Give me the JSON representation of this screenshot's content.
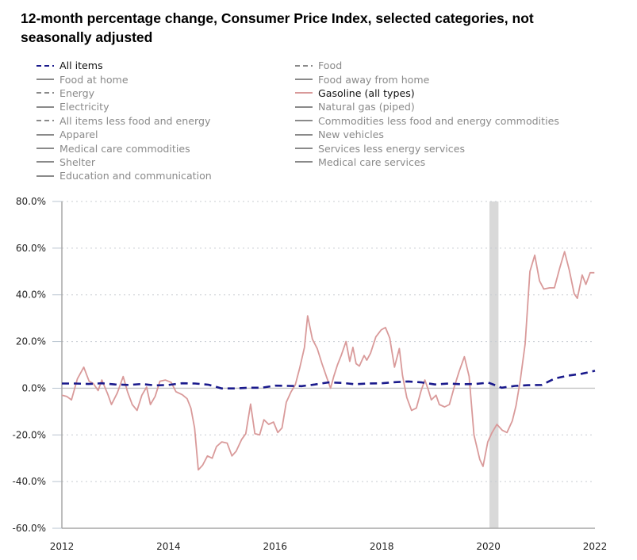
{
  "title": "12-month percentage change, Consumer Price Index, selected categories, not seasonally adjusted",
  "legend": {
    "column1": [
      {
        "label": "All items",
        "style": "dashed",
        "color": "#1a1a8c",
        "active": true
      },
      {
        "label": "Food at home",
        "style": "solid",
        "color": "#8a8a8a",
        "active": false
      },
      {
        "label": "Energy",
        "style": "dashed",
        "color": "#8a8a8a",
        "active": false
      },
      {
        "label": "Electricity",
        "style": "solid",
        "color": "#8a8a8a",
        "active": false
      },
      {
        "label": "All items less food and energy",
        "style": "dashed",
        "color": "#8a8a8a",
        "active": false
      },
      {
        "label": "Apparel",
        "style": "solid",
        "color": "#8a8a8a",
        "active": false
      },
      {
        "label": "Medical care commodities",
        "style": "solid",
        "color": "#8a8a8a",
        "active": false
      },
      {
        "label": "Shelter",
        "style": "solid",
        "color": "#8a8a8a",
        "active": false
      },
      {
        "label": "Education and communication",
        "style": "solid",
        "color": "#8a8a8a",
        "active": false
      }
    ],
    "column2": [
      {
        "label": "Food",
        "style": "dashed",
        "color": "#8a8a8a",
        "active": false
      },
      {
        "label": "Food away from home",
        "style": "solid",
        "color": "#8a8a8a",
        "active": false
      },
      {
        "label": "Gasoline (all types)",
        "style": "solid",
        "color": "#d99a9a",
        "active": true
      },
      {
        "label": "Natural gas (piped)",
        "style": "solid",
        "color": "#8a8a8a",
        "active": false
      },
      {
        "label": "Commodities less food and energy commodities",
        "style": "solid",
        "color": "#8a8a8a",
        "active": false
      },
      {
        "label": "New vehicles",
        "style": "solid",
        "color": "#8a8a8a",
        "active": false
      },
      {
        "label": "Services less energy services",
        "style": "solid",
        "color": "#8a8a8a",
        "active": false
      },
      {
        "label": "Medical care services",
        "style": "solid",
        "color": "#8a8a8a",
        "active": false
      }
    ]
  },
  "chart_data": {
    "type": "line",
    "title": "12-month percentage change, Consumer Price Index, selected categories, not seasonally adjusted",
    "xlabel": "",
    "ylabel": "",
    "xlim": [
      2012,
      2022
    ],
    "ylim": [
      -60,
      80
    ],
    "x_ticks": [
      2012,
      2014,
      2016,
      2018,
      2020,
      2022
    ],
    "x_tick_labels": [
      "2012",
      "2014",
      "2016",
      "2018",
      "2020",
      "2022"
    ],
    "y_ticks": [
      80,
      60,
      40,
      20,
      0,
      -20,
      -40,
      -60
    ],
    "y_tick_labels": [
      "80.0%",
      "60.0%",
      "40.0%",
      "20.0%",
      "0.0%",
      "-20.0%",
      "-40.0%",
      "-60.0%"
    ],
    "grid": "horizontal dotted",
    "legend_position": "top",
    "shaded_periods": [
      {
        "label": "Recession",
        "start": 2020.08,
        "end": 2020.25,
        "color": "#d9d9d9"
      }
    ],
    "series": [
      {
        "name": "All items",
        "style": "dashed",
        "color": "#1a1a8c",
        "x": [
          2012.0,
          2012.25,
          2012.5,
          2012.75,
          2013.0,
          2013.25,
          2013.5,
          2013.75,
          2014.0,
          2014.25,
          2014.5,
          2014.75,
          2015.0,
          2015.25,
          2015.5,
          2015.75,
          2016.0,
          2016.25,
          2016.5,
          2016.75,
          2017.0,
          2017.25,
          2017.5,
          2017.75,
          2018.0,
          2018.25,
          2018.5,
          2018.75,
          2019.0,
          2019.25,
          2019.5,
          2019.75,
          2020.0,
          2020.25,
          2020.5,
          2020.75,
          2021.0,
          2021.25,
          2021.5,
          2021.75,
          2021.92,
          2022.0
        ],
        "values": [
          2.0,
          2.0,
          1.8,
          2.1,
          1.6,
          1.4,
          1.8,
          1.2,
          1.4,
          2.1,
          2.0,
          1.5,
          -0.1,
          -0.1,
          0.2,
          0.2,
          1.1,
          1.0,
          0.9,
          1.6,
          2.5,
          2.3,
          1.7,
          2.0,
          2.1,
          2.6,
          2.9,
          2.5,
          1.6,
          2.0,
          1.7,
          1.8,
          2.4,
          0.2,
          1.0,
          1.3,
          1.4,
          4.2,
          5.4,
          6.2,
          7.0,
          7.5
        ]
      },
      {
        "name": "Gasoline (all types)",
        "style": "solid",
        "color": "#d99a9a",
        "x": [
          2012.0,
          2012.09,
          2012.18,
          2012.29,
          2012.41,
          2012.51,
          2012.59,
          2012.68,
          2012.75,
          2012.86,
          2012.93,
          2013.04,
          2013.15,
          2013.23,
          2013.32,
          2013.41,
          2013.5,
          2013.59,
          2013.66,
          2013.75,
          2013.84,
          2013.94,
          2014.05,
          2014.14,
          2014.26,
          2014.35,
          2014.42,
          2014.49,
          2014.56,
          2014.64,
          2014.73,
          2014.82,
          2014.9,
          2015.0,
          2015.1,
          2015.19,
          2015.27,
          2015.37,
          2015.45,
          2015.54,
          2015.62,
          2015.71,
          2015.79,
          2015.88,
          2015.97,
          2016.05,
          2016.13,
          2016.21,
          2016.3,
          2016.38,
          2016.46,
          2016.55,
          2016.61,
          2016.7,
          2016.79,
          2016.88,
          2016.97,
          2017.04,
          2017.1,
          2017.17,
          2017.24,
          2017.33,
          2017.4,
          2017.46,
          2017.52,
          2017.58,
          2017.67,
          2017.72,
          2017.79,
          2017.89,
          2017.99,
          2018.07,
          2018.15,
          2018.24,
          2018.33,
          2018.39,
          2018.47,
          2018.56,
          2018.65,
          2018.74,
          2018.81,
          2018.87,
          2018.93,
          2019.02,
          2019.08,
          2019.18,
          2019.27,
          2019.36,
          2019.45,
          2019.55,
          2019.64,
          2019.73,
          2019.84,
          2019.9,
          2019.99,
          2020.07,
          2020.16,
          2020.26,
          2020.35,
          2020.45,
          2020.52,
          2020.6,
          2020.69,
          2020.78,
          2020.87,
          2020.96,
          2021.04,
          2021.15,
          2021.24,
          2021.34,
          2021.43,
          2021.52,
          2021.61,
          2021.67,
          2021.76,
          2021.83,
          2021.91,
          2021.99
        ],
        "values": [
          -3.0,
          -3.5,
          -5.0,
          4.0,
          9.0,
          3.0,
          2.0,
          -1.0,
          3.5,
          -2.5,
          -7.0,
          -2.0,
          5.0,
          -1.5,
          -7.0,
          -9.5,
          -3.0,
          0.5,
          -7.0,
          -3.5,
          3.0,
          3.5,
          2.5,
          -1.5,
          -2.8,
          -4.5,
          -8.5,
          -17.0,
          -35.0,
          -33.0,
          -29.0,
          -30.0,
          -25.0,
          -23.0,
          -23.5,
          -29.0,
          -27.0,
          -22.0,
          -19.5,
          -6.8,
          -19.5,
          -20.0,
          -13.5,
          -15.5,
          -14.5,
          -19.0,
          -17.0,
          -6.0,
          -1.5,
          1.5,
          8.5,
          17.5,
          31.0,
          21.0,
          17.0,
          10.5,
          4.5,
          0.0,
          5.0,
          10.0,
          14.0,
          20.0,
          11.5,
          17.5,
          10.5,
          9.5,
          14.0,
          12.0,
          15.0,
          22.0,
          25.0,
          26.0,
          21.5,
          9.0,
          17.0,
          5.5,
          -4.0,
          -9.5,
          -8.5,
          -1.0,
          3.5,
          -0.5,
          -5.0,
          -3.0,
          -7.0,
          -8.0,
          -7.0,
          0.5,
          7.0,
          13.5,
          5.0,
          -20.0,
          -30.5,
          -33.5,
          -23.0,
          -19.0,
          -15.5,
          -18.0,
          -19.0,
          -14.0,
          -7.5,
          3.5,
          19.0,
          50.0,
          57.0,
          46.0,
          42.5,
          43.0,
          43.0,
          51.5,
          58.5,
          50.5,
          40.5,
          38.5,
          48.5,
          44.5,
          49.5,
          49.5
        ]
      }
    ]
  }
}
